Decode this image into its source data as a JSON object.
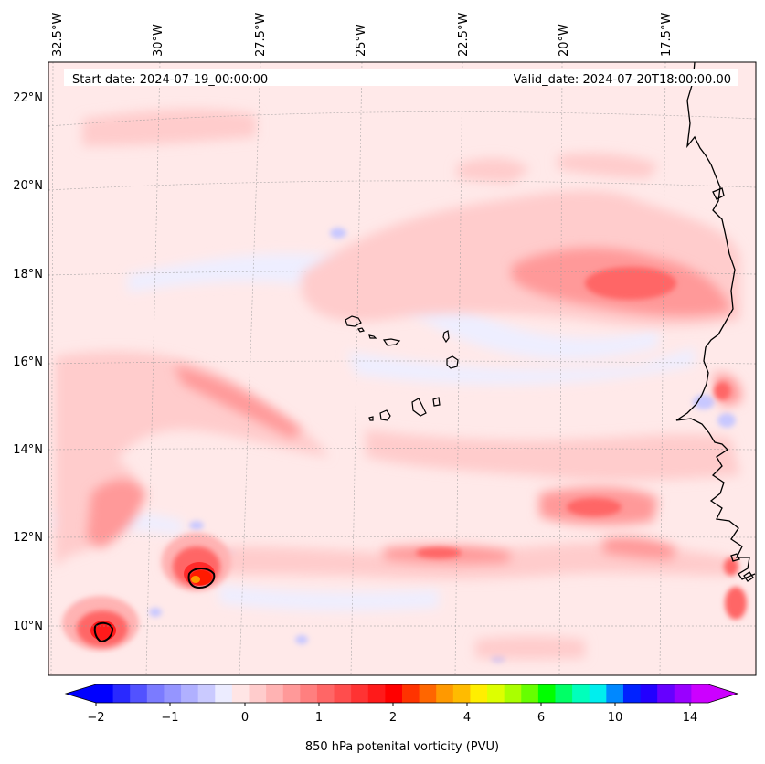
{
  "header": {
    "start_date": "Start date: 2024-07-19_00:00:00",
    "valid_date": "Valid_date: 2024-07-20T18:00:00.00"
  },
  "map": {
    "lon_labels": [
      "32.5°W",
      "30°W",
      "27.5°W",
      "25°W",
      "22.5°W",
      "20°W",
      "17.5°W"
    ],
    "lat_labels": [
      "22°N",
      "20°N",
      "18°N",
      "16°N",
      "14°N",
      "12°N",
      "10°N"
    ]
  },
  "colorbar": {
    "title": "850 hPa potenital vorticity (PVU)",
    "ticks": [
      "−2",
      "−1",
      "0",
      "1",
      "2",
      "4",
      "6",
      "10",
      "14"
    ],
    "colors": [
      "#0000ff",
      "#2929ff",
      "#5252ff",
      "#7b7bff",
      "#9595ff",
      "#b0b0ff",
      "#cacaff",
      "#ececff",
      "#ffe5e5",
      "#ffcccc",
      "#ffb3b3",
      "#ff9999",
      "#ff7f7f",
      "#ff6666",
      "#ff4d4d",
      "#ff3333",
      "#ff1a1a",
      "#ff0000",
      "#ff3300",
      "#ff6600",
      "#ff9900",
      "#ffbb00",
      "#ffee00",
      "#ddff00",
      "#aaff00",
      "#66ff00",
      "#00ff00",
      "#00ff66",
      "#00ffbb",
      "#00eeee",
      "#0088ff",
      "#0022ff",
      "#2200ff",
      "#6600ff",
      "#9900ff",
      "#cc00ff"
    ]
  }
}
